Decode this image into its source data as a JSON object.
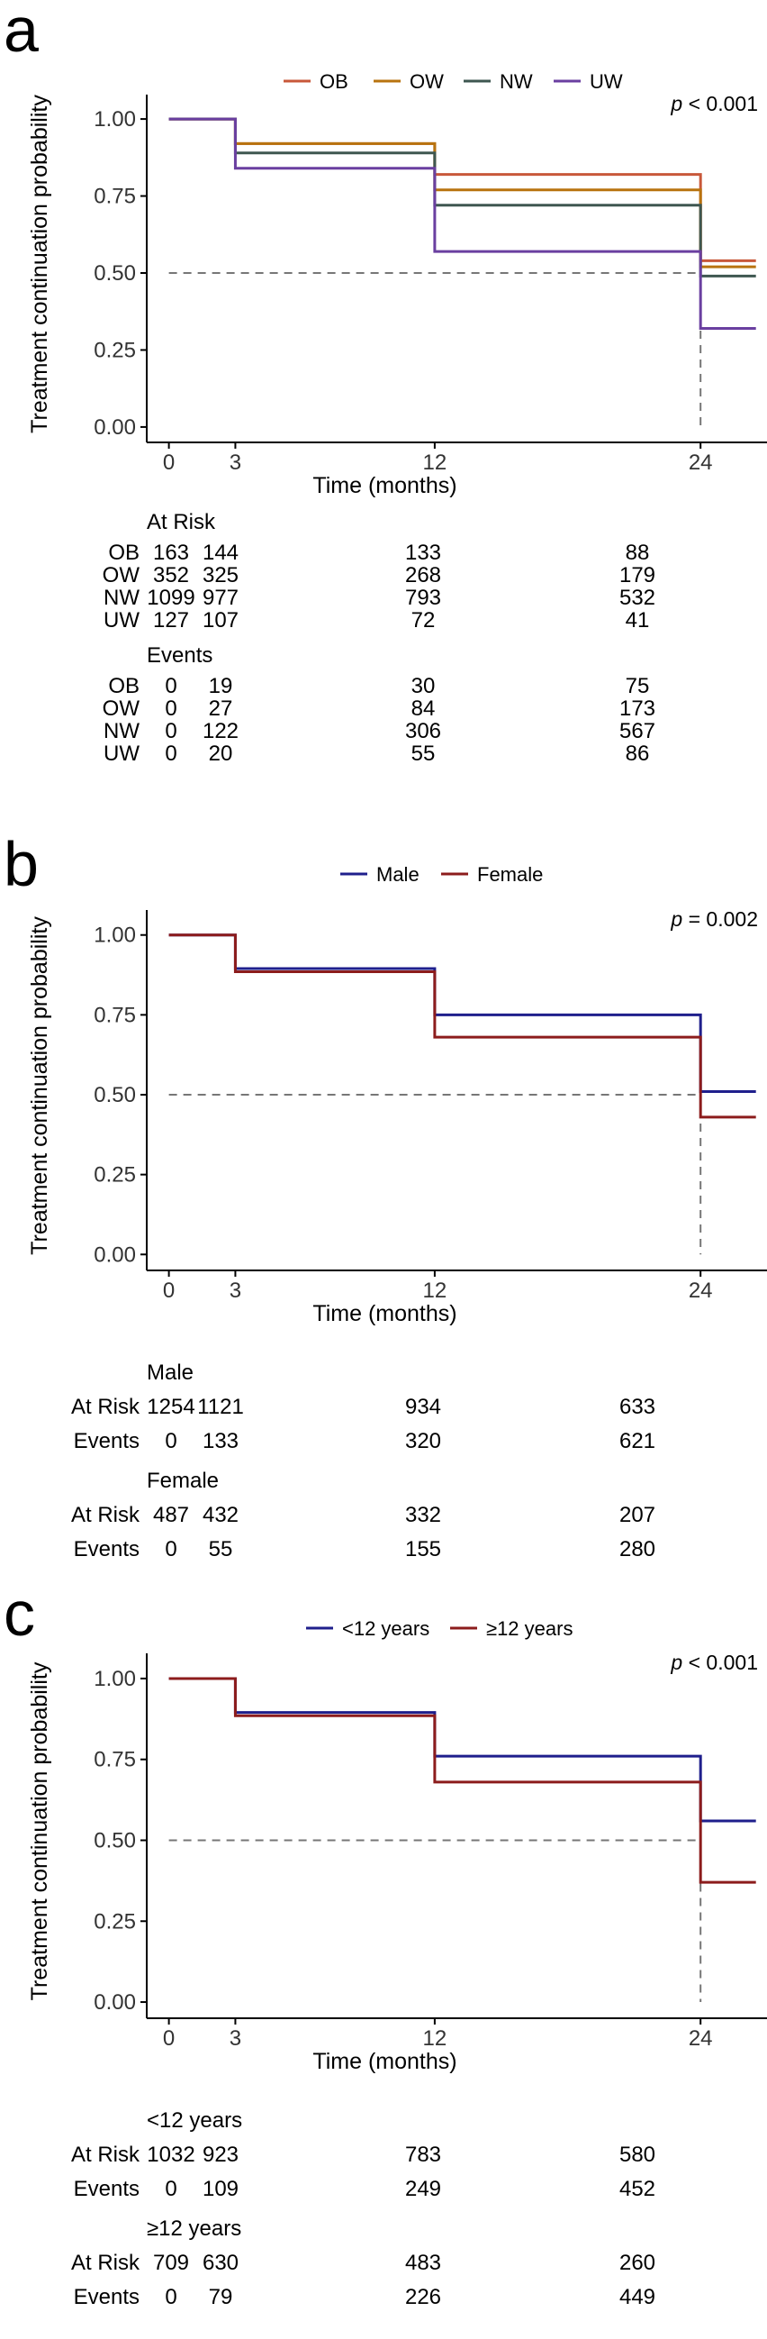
{
  "panels": [
    {
      "letter": "a",
      "y_label": "Treatment continuation probability",
      "x_label": "Time (months)",
      "p_prefix": "p",
      "p_value": " < 0.001",
      "legend": [
        {
          "name": "OB",
          "color": "#c8583a"
        },
        {
          "name": "OW",
          "color": "#b8730f"
        },
        {
          "name": "NW",
          "color": "#3e5750"
        },
        {
          "name": "UW",
          "color": "#6a3fa0"
        }
      ],
      "table_blocks": [
        {
          "title": "At Risk",
          "rows": [
            {
              "label": "OB",
              "values": [
                "163",
                "144",
                "133",
                "88"
              ]
            },
            {
              "label": "OW",
              "values": [
                "352",
                "325",
                "268",
                "179"
              ]
            },
            {
              "label": "NW",
              "values": [
                "1099",
                "977",
                "793",
                "532"
              ]
            },
            {
              "label": "UW",
              "values": [
                "127",
                "107",
                "72",
                "41"
              ]
            }
          ]
        },
        {
          "title": "Events",
          "rows": [
            {
              "label": "OB",
              "values": [
                "0",
                "19",
                "30",
                "75"
              ]
            },
            {
              "label": "OW",
              "values": [
                "0",
                "27",
                "84",
                "173"
              ]
            },
            {
              "label": "NW",
              "values": [
                "0",
                "122",
                "306",
                "567"
              ]
            },
            {
              "label": "UW",
              "values": [
                "0",
                "20",
                "55",
                "86"
              ]
            }
          ]
        }
      ]
    },
    {
      "letter": "b",
      "y_label": "Treatment continuation probability",
      "x_label": "Time (months)",
      "p_prefix": "p",
      "p_value": " = 0.002",
      "legend": [
        {
          "name": "Male",
          "color": "#1f1f8c"
        },
        {
          "name": "Female",
          "color": "#8c1c1c"
        }
      ],
      "table_blocks": [
        {
          "title": "Male",
          "rows": [
            {
              "label": "At Risk",
              "values": [
                "1254",
                "1121",
                "934",
                "633"
              ]
            },
            {
              "label": "Events",
              "values": [
                "0",
                "133",
                "320",
                "621"
              ]
            }
          ]
        },
        {
          "title": "Female",
          "rows": [
            {
              "label": "At Risk",
              "values": [
                "487",
                "432",
                "332",
                "207"
              ]
            },
            {
              "label": "Events",
              "values": [
                "0",
                "55",
                "155",
                "280"
              ]
            }
          ]
        }
      ]
    },
    {
      "letter": "c",
      "y_label": "Treatment continuation probability",
      "x_label": "Time (months)",
      "p_prefix": "p",
      "p_value": " < 0.001",
      "legend": [
        {
          "name": "<12 years",
          "color": "#1f1f8c"
        },
        {
          "name": "≥12 years",
          "color": "#8c1c1c"
        }
      ],
      "table_blocks": [
        {
          "title": "<12 years",
          "rows": [
            {
              "label": "At Risk",
              "values": [
                "1032",
                "923",
                "783",
                "580"
              ]
            },
            {
              "label": "Events",
              "values": [
                "0",
                "109",
                "249",
                "452"
              ]
            }
          ]
        },
        {
          "title": "≥12 years",
          "rows": [
            {
              "label": "At Risk",
              "values": [
                "709",
                "630",
                "483",
                "260"
              ]
            },
            {
              "label": "Events",
              "values": [
                "0",
                "79",
                "226",
                "449"
              ]
            }
          ]
        }
      ]
    }
  ],
  "chart_data": [
    {
      "type": "line",
      "step": true,
      "title": "",
      "xlabel": "Time (months)",
      "ylabel": "Treatment continuation probability",
      "xticks": [
        0,
        3,
        12,
        24
      ],
      "yticks": [
        0.0,
        0.25,
        0.5,
        0.75,
        1.0
      ],
      "ytick_labels": [
        "0.00",
        "0.25",
        "0.50",
        "0.75",
        "1.00"
      ],
      "xlim": [
        -1,
        27
      ],
      "ylim": [
        -0.05,
        1.05
      ],
      "reference_line": {
        "y": 0.5,
        "median_x": 24
      },
      "legend_position": "top",
      "grid": false,
      "series": [
        {
          "name": "OB",
          "color": "#c8583a",
          "x": [
            0,
            3,
            12,
            24,
            26.5
          ],
          "y": [
            1.0,
            0.92,
            0.82,
            0.54,
            0.54
          ]
        },
        {
          "name": "OW",
          "color": "#b8730f",
          "x": [
            0,
            3,
            12,
            24,
            26.5
          ],
          "y": [
            1.0,
            0.92,
            0.77,
            0.52,
            0.52
          ]
        },
        {
          "name": "NW",
          "color": "#3e5750",
          "x": [
            0,
            3,
            12,
            24,
            26.5
          ],
          "y": [
            1.0,
            0.89,
            0.72,
            0.49,
            0.49
          ]
        },
        {
          "name": "UW",
          "color": "#6a3fa0",
          "x": [
            0,
            3,
            12,
            24,
            26.5
          ],
          "y": [
            1.0,
            0.84,
            0.57,
            0.32,
            0.32
          ]
        }
      ]
    },
    {
      "type": "line",
      "step": true,
      "title": "",
      "xlabel": "Time (months)",
      "ylabel": "Treatment continuation probability",
      "xticks": [
        0,
        3,
        12,
        24
      ],
      "yticks": [
        0.0,
        0.25,
        0.5,
        0.75,
        1.0
      ],
      "ytick_labels": [
        "0.00",
        "0.25",
        "0.50",
        "0.75",
        "1.00"
      ],
      "xlim": [
        -1,
        27
      ],
      "ylim": [
        -0.05,
        1.05
      ],
      "reference_line": {
        "y": 0.5,
        "median_x": 24
      },
      "legend_position": "top",
      "grid": false,
      "series": [
        {
          "name": "Male",
          "color": "#1f1f8c",
          "x": [
            0,
            3,
            12,
            24,
            26.5
          ],
          "y": [
            1.0,
            0.895,
            0.75,
            0.51,
            0.51
          ]
        },
        {
          "name": "Female",
          "color": "#8c1c1c",
          "x": [
            0,
            3,
            12,
            24,
            26.5
          ],
          "y": [
            1.0,
            0.885,
            0.68,
            0.43,
            0.43
          ]
        }
      ]
    },
    {
      "type": "line",
      "step": true,
      "title": "",
      "xlabel": "Time (months)",
      "ylabel": "Treatment continuation probability",
      "xticks": [
        0,
        3,
        12,
        24
      ],
      "yticks": [
        0.0,
        0.25,
        0.5,
        0.75,
        1.0
      ],
      "ytick_labels": [
        "0.00",
        "0.25",
        "0.50",
        "0.75",
        "1.00"
      ],
      "xlim": [
        -1,
        27
      ],
      "ylim": [
        -0.05,
        1.05
      ],
      "reference_line": {
        "y": 0.5,
        "median_x": 24
      },
      "legend_position": "top",
      "grid": false,
      "series": [
        {
          "name": "<12 years",
          "color": "#1f1f8c",
          "x": [
            0,
            3,
            12,
            24,
            26.5
          ],
          "y": [
            1.0,
            0.895,
            0.76,
            0.56,
            0.56
          ]
        },
        {
          "name": "≥12 years",
          "color": "#8c1c1c",
          "x": [
            0,
            3,
            12,
            24,
            26.5
          ],
          "y": [
            1.0,
            0.885,
            0.68,
            0.37,
            0.37
          ]
        }
      ]
    }
  ]
}
